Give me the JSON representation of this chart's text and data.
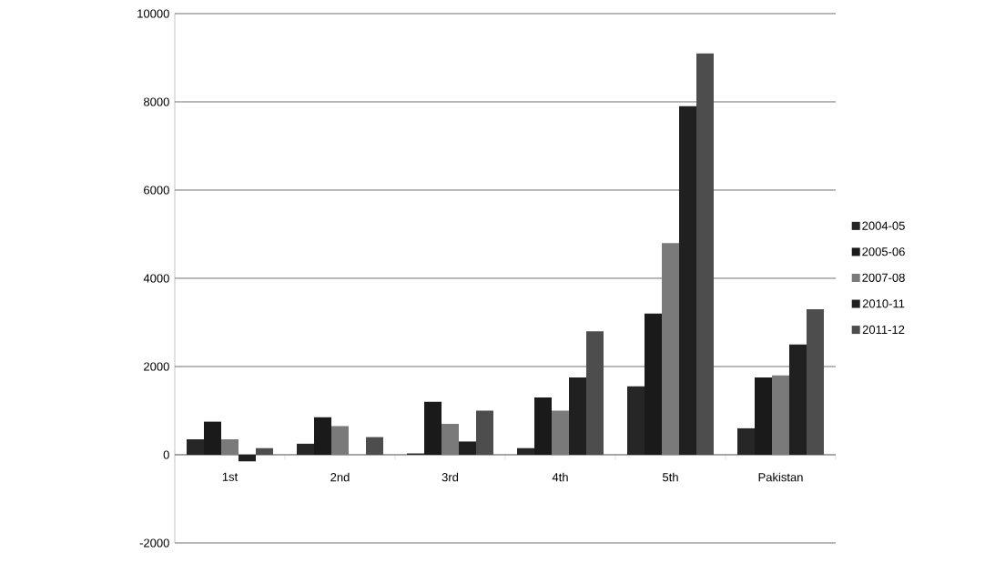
{
  "chart_data": {
    "type": "bar",
    "categories": [
      "1st",
      "2nd",
      "3rd",
      "4th",
      "5th",
      "Pakistan"
    ],
    "series": [
      {
        "name": "2004-05",
        "color": "#262626",
        "values": [
          350,
          250,
          30,
          150,
          1550,
          600
        ]
      },
      {
        "name": "2005-06",
        "color": "#1a1a1a",
        "values": [
          750,
          850,
          1200,
          1300,
          3200,
          1750
        ]
      },
      {
        "name": "2007-08",
        "color": "#7a7a7a",
        "values": [
          350,
          650,
          700,
          1000,
          4800,
          1800
        ]
      },
      {
        "name": "2010-11",
        "color": "#202020",
        "values": [
          -150,
          0,
          300,
          1750,
          7900,
          2500
        ]
      },
      {
        "name": "2011-12",
        "color": "#4d4d4d",
        "values": [
          150,
          400,
          1000,
          2800,
          9100,
          3300
        ]
      }
    ],
    "ylim": [
      -2000,
      10000
    ],
    "yticks": [
      -2000,
      0,
      2000,
      4000,
      6000,
      8000,
      10000
    ],
    "grid": "y",
    "legend": "right"
  }
}
